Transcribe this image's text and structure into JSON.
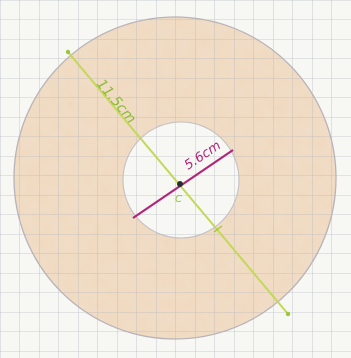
{
  "diagram": {
    "diameter_label": "11.5cm",
    "radius_label": "5.6cm",
    "center_label": "C",
    "colors": {
      "paper": "#f7f7f4",
      "grid": "#b9bfc7",
      "annulus_fill": "#e8b98c",
      "inner_disc": "#fbfbf9",
      "circle_outline": "#b8b3b8",
      "diameter_line": "#c3d85a",
      "diameter_text": "#8dbb3c",
      "radius_line": "#b0267a",
      "radius_text": "#b0267a",
      "center_dot": "#2a2a2a"
    }
  }
}
